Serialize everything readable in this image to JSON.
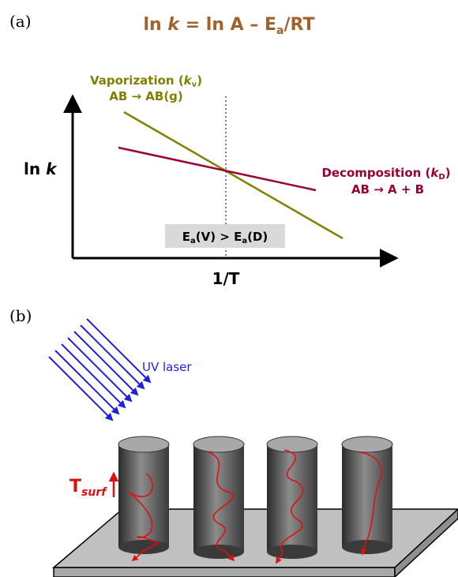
{
  "panel_a": {
    "label": "(a)",
    "equation": {
      "part1": "ln ",
      "k": "k",
      "part2": " = ln A – E",
      "sub": "a",
      "part3": "/RT"
    },
    "y_axis_label": {
      "main": "ln ",
      "k": "k"
    },
    "x_axis_label": "1/T",
    "vaporization": {
      "name_main": "Vaporization (",
      "name_k": "k",
      "name_sub": "v",
      "name_close": ")",
      "reaction": "AB → AB(g)"
    },
    "decomposition": {
      "name_main": "Decomposition (",
      "name_k": "k",
      "name_sub": "D",
      "name_close": ")",
      "reaction": "AB → A + B"
    },
    "comparison": {
      "e1": "E",
      "s1": "a",
      "mid": "(V) > E",
      "s2": "a",
      "end": "(D)"
    }
  },
  "panel_b": {
    "label": "(b)",
    "laser_label": "UV laser",
    "tsurf_main": "T",
    "tsurf_sub": "surf"
  },
  "colors": {
    "title": "#a0622d",
    "vaporization": "#808000",
    "decomposition": "#990033",
    "laser": "#1f1fe0",
    "trajectory": "#e01010",
    "tsurf": "#e01010"
  }
}
